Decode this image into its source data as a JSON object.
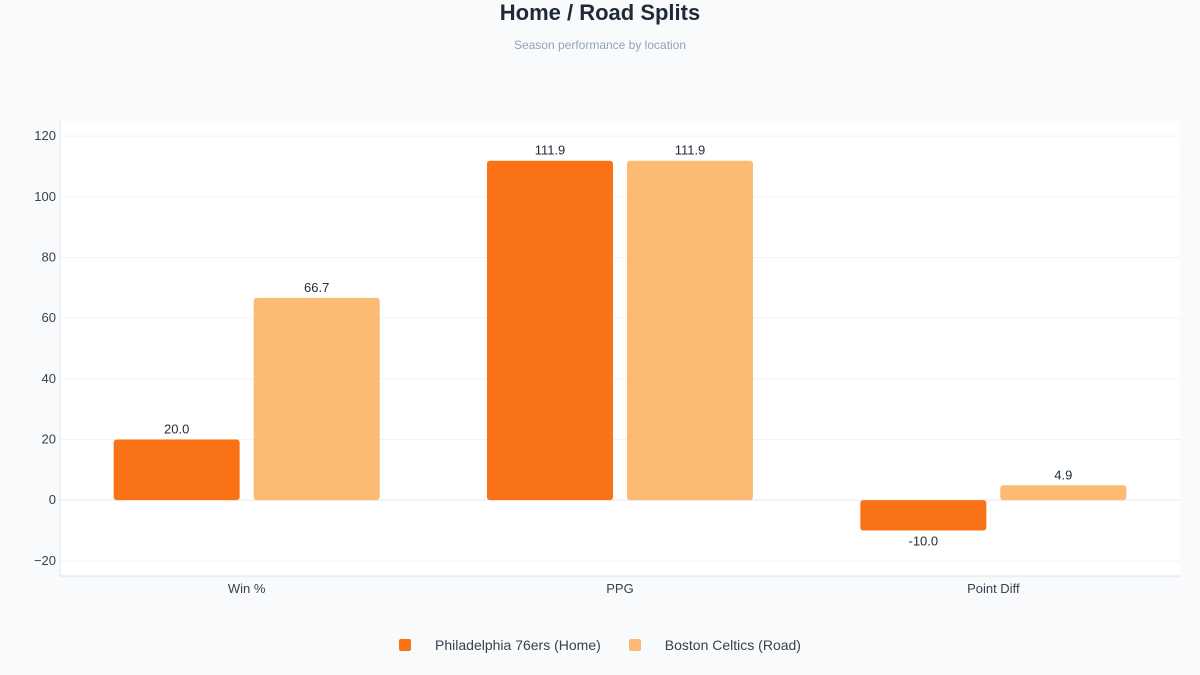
{
  "chart_data": {
    "type": "bar",
    "title": "Home / Road Splits",
    "subtitle": "Season performance by location",
    "categories": [
      "Win %",
      "PPG",
      "Point Diff"
    ],
    "series": [
      {
        "name": "Philadelphia 76ers (Home)",
        "color": "#f97316",
        "values": [
          20.0,
          111.9,
          -10.0
        ],
        "labels": [
          "20.0",
          "111.9",
          "-10.0"
        ]
      },
      {
        "name": "Boston Celtics (Road)",
        "color": "#fdba74",
        "values": [
          66.7,
          111.9,
          4.9
        ],
        "labels": [
          "66.7",
          "111.9",
          "4.9"
        ]
      }
    ],
    "ylim": [
      -25,
      125
    ],
    "yticks": [
      -20,
      0,
      20,
      40,
      60,
      80,
      100,
      120
    ],
    "ytick_labels": [
      "−20",
      "0",
      "20",
      "40",
      "60",
      "80",
      "100",
      "120"
    ],
    "grid": true,
    "legend_position": "bottom-center"
  }
}
